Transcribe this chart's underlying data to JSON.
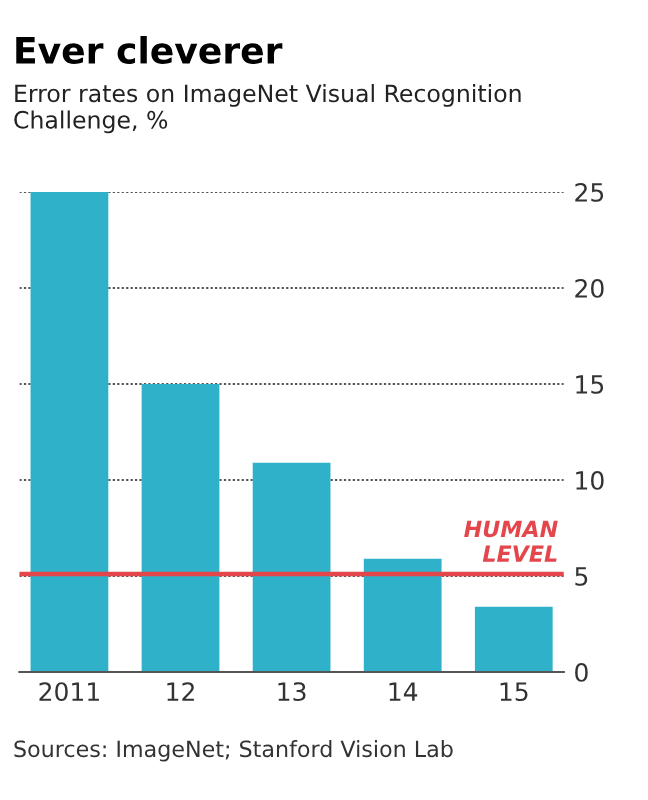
{
  "chart_data": {
    "type": "bar",
    "title": "Ever cleverer",
    "subtitle": "Error rates on ImageNet Visual Recognition Challenge, %",
    "categories": [
      "2011",
      "12",
      "13",
      "14",
      "15"
    ],
    "values": [
      25.0,
      15.0,
      10.9,
      5.9,
      3.4
    ],
    "color": "#2fb2c9",
    "ylim": [
      0,
      25
    ],
    "yticks": [
      0,
      5,
      10,
      15,
      20,
      25
    ],
    "grid": "y",
    "ref_lines": [
      {
        "axis": "y",
        "value": 5.1,
        "label": "HUMAN\nLEVEL",
        "color": "#e3474c"
      }
    ],
    "annotations": [
      "Sources: ImageNet; Stanford Vision Lab"
    ]
  }
}
